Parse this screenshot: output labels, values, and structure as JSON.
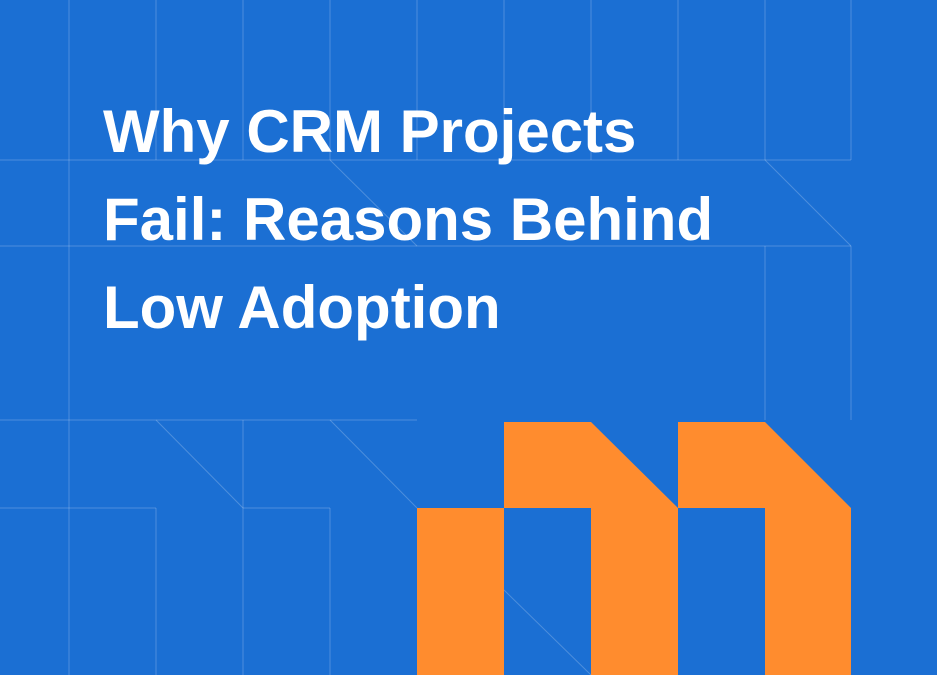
{
  "header": {
    "title_lines": [
      "Why CRM Projects",
      "Fail: Reasons Behind",
      "Low Adoption"
    ]
  }
}
